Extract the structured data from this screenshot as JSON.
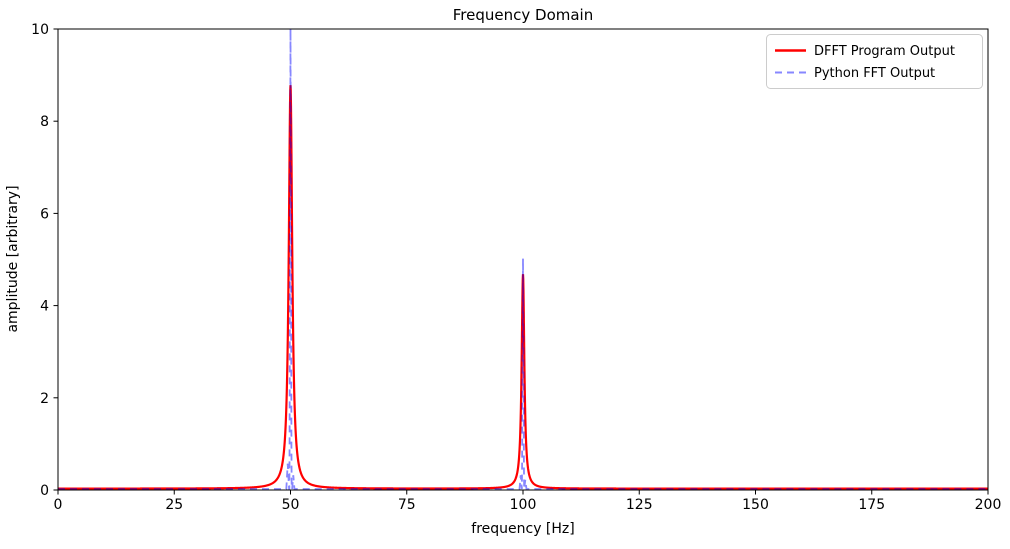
{
  "figure": {
    "background": "#ffffff",
    "spine_color": "#000000"
  },
  "chart_data": {
    "type": "line",
    "title": "Frequency Domain",
    "xlabel": "frequency [Hz]",
    "ylabel": "amplitude [arbitrary]",
    "xlim": [
      0,
      200
    ],
    "ylim": [
      0,
      10
    ],
    "xticks": [
      0,
      25,
      50,
      75,
      100,
      125,
      150,
      175,
      200
    ],
    "yticks": [
      0,
      2,
      4,
      6,
      8,
      10
    ],
    "grid": false,
    "legend": {
      "position": "upper right",
      "entries": [
        "DFFT Program Output",
        "Python FFT Output"
      ],
      "border_color": "#cccccc",
      "background": "#ffffff"
    },
    "series": [
      {
        "name": "DFFT Program Output",
        "color": "#ff0000",
        "alpha": 1.0,
        "line_style": "solid",
        "line_width": 2.2,
        "shape": "lorentzian_peaks",
        "baseline": 0.03,
        "peaks": [
          {
            "frequency_hz": 50,
            "amplitude": 8.75,
            "half_width_hz": 0.45
          },
          {
            "frequency_hz": 100,
            "amplitude": 4.65,
            "half_width_hz": 0.35
          }
        ]
      },
      {
        "name": "Python FFT Output",
        "color": "#0000ff",
        "alpha": 0.47,
        "line_style": "dashed",
        "line_width": 1.8,
        "shape": "triangle_spikes",
        "baseline": 0.02,
        "peaks": [
          {
            "frequency_hz": 50,
            "amplitude": 10.0,
            "half_width_hz": 0.22
          },
          {
            "frequency_hz": 100,
            "amplitude": 5.0,
            "half_width_hz": 0.22
          },
          {
            "frequency_hz": 49.4,
            "amplitude": 0.55,
            "half_width_hz": 0.3
          },
          {
            "frequency_hz": 50.6,
            "amplitude": 0.3,
            "half_width_hz": 0.25
          },
          {
            "frequency_hz": 99.5,
            "amplitude": 0.3,
            "half_width_hz": 0.25
          },
          {
            "frequency_hz": 100.5,
            "amplitude": 0.2,
            "half_width_hz": 0.25
          }
        ]
      }
    ]
  }
}
